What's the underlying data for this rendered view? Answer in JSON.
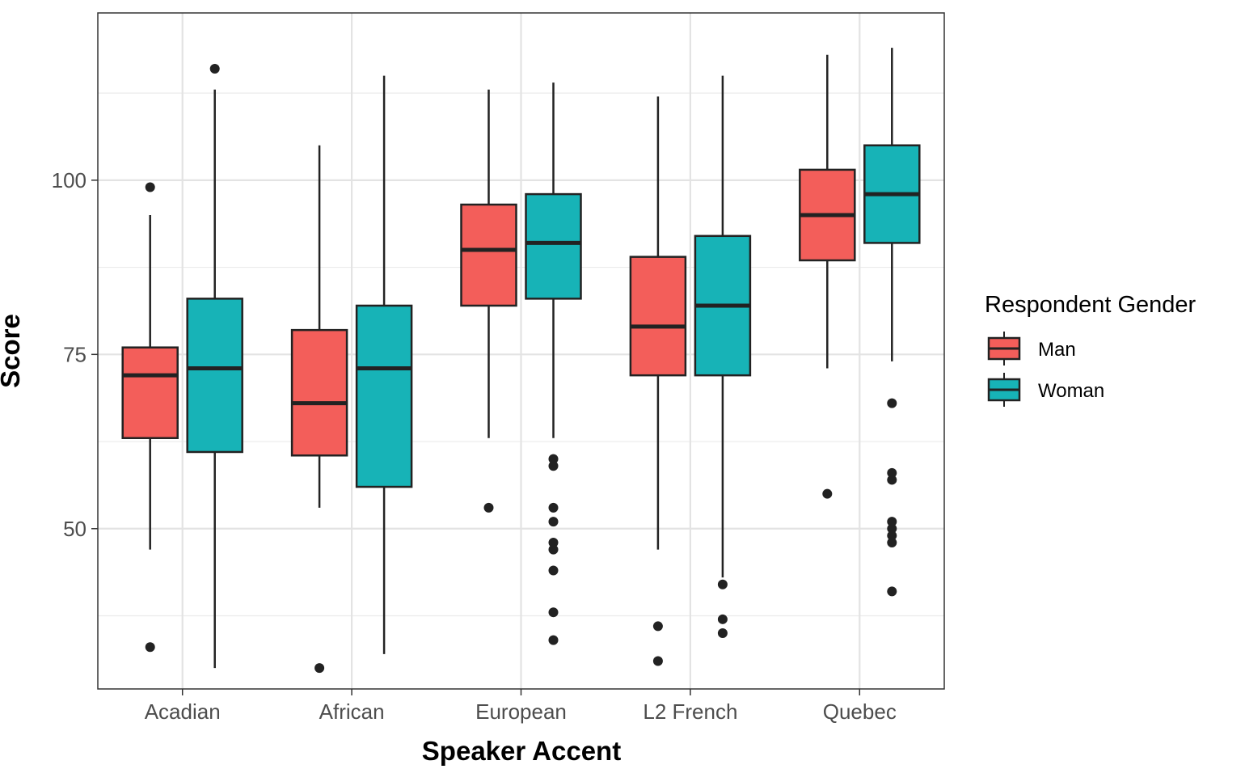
{
  "chart_data": {
    "type": "boxplot",
    "xlabel": "Speaker Accent",
    "ylabel": "Score",
    "ylim": [
      27,
      124
    ],
    "y_ticks": [
      50,
      75,
      100
    ],
    "y_minor_ticks": [
      37.5,
      62.5,
      87.5,
      112.5
    ],
    "grid": true,
    "categories": [
      "Acadian",
      "African",
      "European",
      "L2 French",
      "Quebec"
    ],
    "legend": {
      "title": "Respondent Gender",
      "position": "right",
      "entries": [
        "Man",
        "Woman"
      ]
    },
    "colors": {
      "Man": "#F35E5A",
      "Woman": "#17B3B7"
    },
    "series": [
      {
        "name": "Man",
        "boxes": [
          {
            "category": "Acadian",
            "whisker_low": 47,
            "q1": 63,
            "median": 72,
            "q3": 76,
            "whisker_high": 95,
            "outliers": [
              99,
              33
            ]
          },
          {
            "category": "African",
            "whisker_low": 53,
            "q1": 60.5,
            "median": 68,
            "q3": 78.5,
            "whisker_high": 105,
            "outliers": [
              30
            ]
          },
          {
            "category": "European",
            "whisker_low": 63,
            "q1": 82,
            "median": 90,
            "q3": 96.5,
            "whisker_high": 113,
            "outliers": [
              53
            ]
          },
          {
            "category": "L2 French",
            "whisker_low": 47,
            "q1": 72,
            "median": 79,
            "q3": 89,
            "whisker_high": 112,
            "outliers": [
              36,
              31
            ]
          },
          {
            "category": "Quebec",
            "whisker_low": 73,
            "q1": 88.5,
            "median": 95,
            "q3": 101.5,
            "whisker_high": 118,
            "outliers": [
              55
            ]
          }
        ]
      },
      {
        "name": "Woman",
        "boxes": [
          {
            "category": "Acadian",
            "whisker_low": 30,
            "q1": 61,
            "median": 73,
            "q3": 83,
            "whisker_high": 113,
            "outliers": [
              116
            ]
          },
          {
            "category": "African",
            "whisker_low": 32,
            "q1": 56,
            "median": 73,
            "q3": 82,
            "whisker_high": 115,
            "outliers": []
          },
          {
            "category": "European",
            "whisker_low": 63,
            "q1": 83,
            "median": 91,
            "q3": 98,
            "whisker_high": 114,
            "outliers": [
              60,
              59,
              53,
              51,
              48,
              47,
              44,
              38,
              34
            ]
          },
          {
            "category": "L2 French",
            "whisker_low": 43,
            "q1": 72,
            "median": 82,
            "q3": 92,
            "whisker_high": 115,
            "outliers": [
              42,
              37,
              35
            ]
          },
          {
            "category": "Quebec",
            "whisker_low": 74,
            "q1": 91,
            "median": 98,
            "q3": 105,
            "whisker_high": 119,
            "outliers": [
              68,
              58,
              57,
              51,
              50,
              49,
              48,
              41
            ]
          }
        ]
      }
    ]
  }
}
